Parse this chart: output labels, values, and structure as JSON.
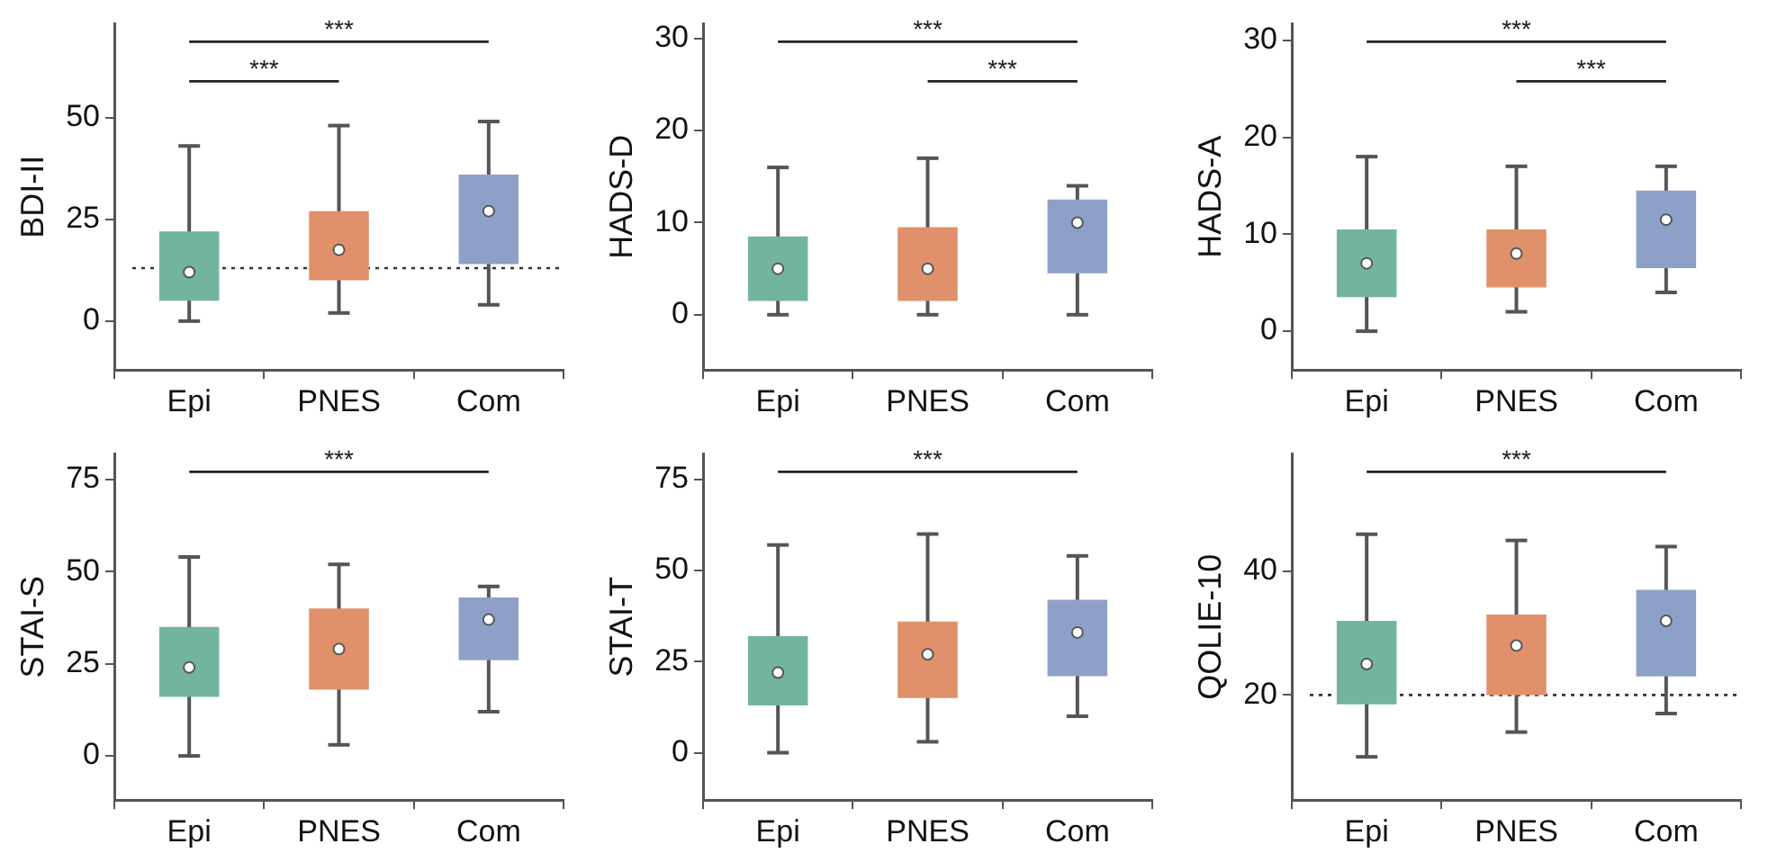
{
  "chart_data": [
    {
      "type": "box",
      "ylabel": "BDI-II",
      "categories": [
        "Epi",
        "PNES",
        "Com"
      ],
      "colors": [
        "#72b59c",
        "#e0916b",
        "#8fa0c8"
      ],
      "ylim": [
        -12,
        73
      ],
      "yticks": [
        0,
        25,
        50
      ],
      "boxes": [
        {
          "low": 0,
          "q1": 5,
          "median": 12,
          "q3": 22,
          "high": 43
        },
        {
          "low": 2,
          "q1": 10,
          "median": 17.5,
          "q3": 27,
          "high": 48
        },
        {
          "low": 4,
          "q1": 14,
          "median": 27,
          "q3": 36,
          "high": 49
        }
      ],
      "annotations": [
        "***",
        "***"
      ],
      "ref_lines": [
        {
          "axis": "y",
          "value": 13,
          "line_style": "dotted"
        }
      ]
    },
    {
      "type": "box",
      "ylabel": "HADS-D",
      "categories": [
        "Epi",
        "PNES",
        "Com"
      ],
      "colors": [
        "#72b59c",
        "#e0916b",
        "#8fa0c8"
      ],
      "ylim": [
        -6,
        31.6
      ],
      "yticks": [
        0,
        10,
        20,
        30
      ],
      "boxes": [
        {
          "low": 0,
          "q1": 1.5,
          "median": 5,
          "q3": 8.5,
          "high": 16
        },
        {
          "low": 0,
          "q1": 1.5,
          "median": 5,
          "q3": 9.5,
          "high": 17
        },
        {
          "low": 0,
          "q1": 4.5,
          "median": 10,
          "q3": 12.5,
          "high": 14
        }
      ],
      "annotations": [
        "***",
        "***"
      ]
    },
    {
      "type": "box",
      "ylabel": "HADS-A",
      "categories": [
        "Epi",
        "PNES",
        "Com"
      ],
      "colors": [
        "#72b59c",
        "#e0916b",
        "#8fa0c8"
      ],
      "ylim": [
        -4,
        31.7
      ],
      "yticks": [
        0,
        10,
        20,
        30
      ],
      "boxes": [
        {
          "low": 0,
          "q1": 3.5,
          "median": 7,
          "q3": 10.5,
          "high": 18
        },
        {
          "low": 2,
          "q1": 4.5,
          "median": 8,
          "q3": 10.5,
          "high": 17
        },
        {
          "low": 4,
          "q1": 6.5,
          "median": 11.5,
          "q3": 14.5,
          "high": 17
        }
      ],
      "annotations": [
        "***",
        "***"
      ]
    },
    {
      "type": "box",
      "ylabel": "STAI-S",
      "categories": [
        "Epi",
        "PNES",
        "Com"
      ],
      "colors": [
        "#72b59c",
        "#e0916b",
        "#8fa0c8"
      ],
      "ylim": [
        -12,
        82
      ],
      "yticks": [
        0,
        25,
        50,
        75
      ],
      "boxes": [
        {
          "low": 0,
          "q1": 16,
          "median": 24,
          "q3": 35,
          "high": 54
        },
        {
          "low": 3,
          "q1": 18,
          "median": 29,
          "q3": 40,
          "high": 52
        },
        {
          "low": 12,
          "q1": 26,
          "median": 37,
          "q3": 43,
          "high": 46
        }
      ],
      "annotations": [
        "***"
      ]
    },
    {
      "type": "box",
      "ylabel": "STAI-T",
      "categories": [
        "Epi",
        "PNES",
        "Com"
      ],
      "colors": [
        "#72b59c",
        "#e0916b",
        "#8fa0c8"
      ],
      "ylim": [
        -13,
        82
      ],
      "yticks": [
        0,
        25,
        50,
        75
      ],
      "boxes": [
        {
          "low": 0,
          "q1": 13,
          "median": 22,
          "q3": 32,
          "high": 57
        },
        {
          "low": 3,
          "q1": 15,
          "median": 27,
          "q3": 36,
          "high": 60
        },
        {
          "low": 10,
          "q1": 21,
          "median": 33,
          "q3": 42,
          "high": 54
        }
      ],
      "annotations": [
        "***"
      ]
    },
    {
      "type": "box",
      "ylabel": "QOLIE-10",
      "categories": [
        "Epi",
        "PNES",
        "Com"
      ],
      "colors": [
        "#72b59c",
        "#e0916b",
        "#8fa0c8"
      ],
      "ylim": [
        3,
        59
      ],
      "yticks": [
        20,
        40
      ],
      "boxes": [
        {
          "low": 10,
          "q1": 18.5,
          "median": 25,
          "q3": 32,
          "high": 46
        },
        {
          "low": 14,
          "q1": 20,
          "median": 28,
          "q3": 33,
          "high": 45
        },
        {
          "low": 17,
          "q1": 23,
          "median": 32,
          "q3": 37,
          "high": 44
        }
      ],
      "annotations": [
        "***"
      ],
      "ref_lines": [
        {
          "axis": "y",
          "value": 20,
          "line_style": "dotted"
        }
      ]
    }
  ]
}
